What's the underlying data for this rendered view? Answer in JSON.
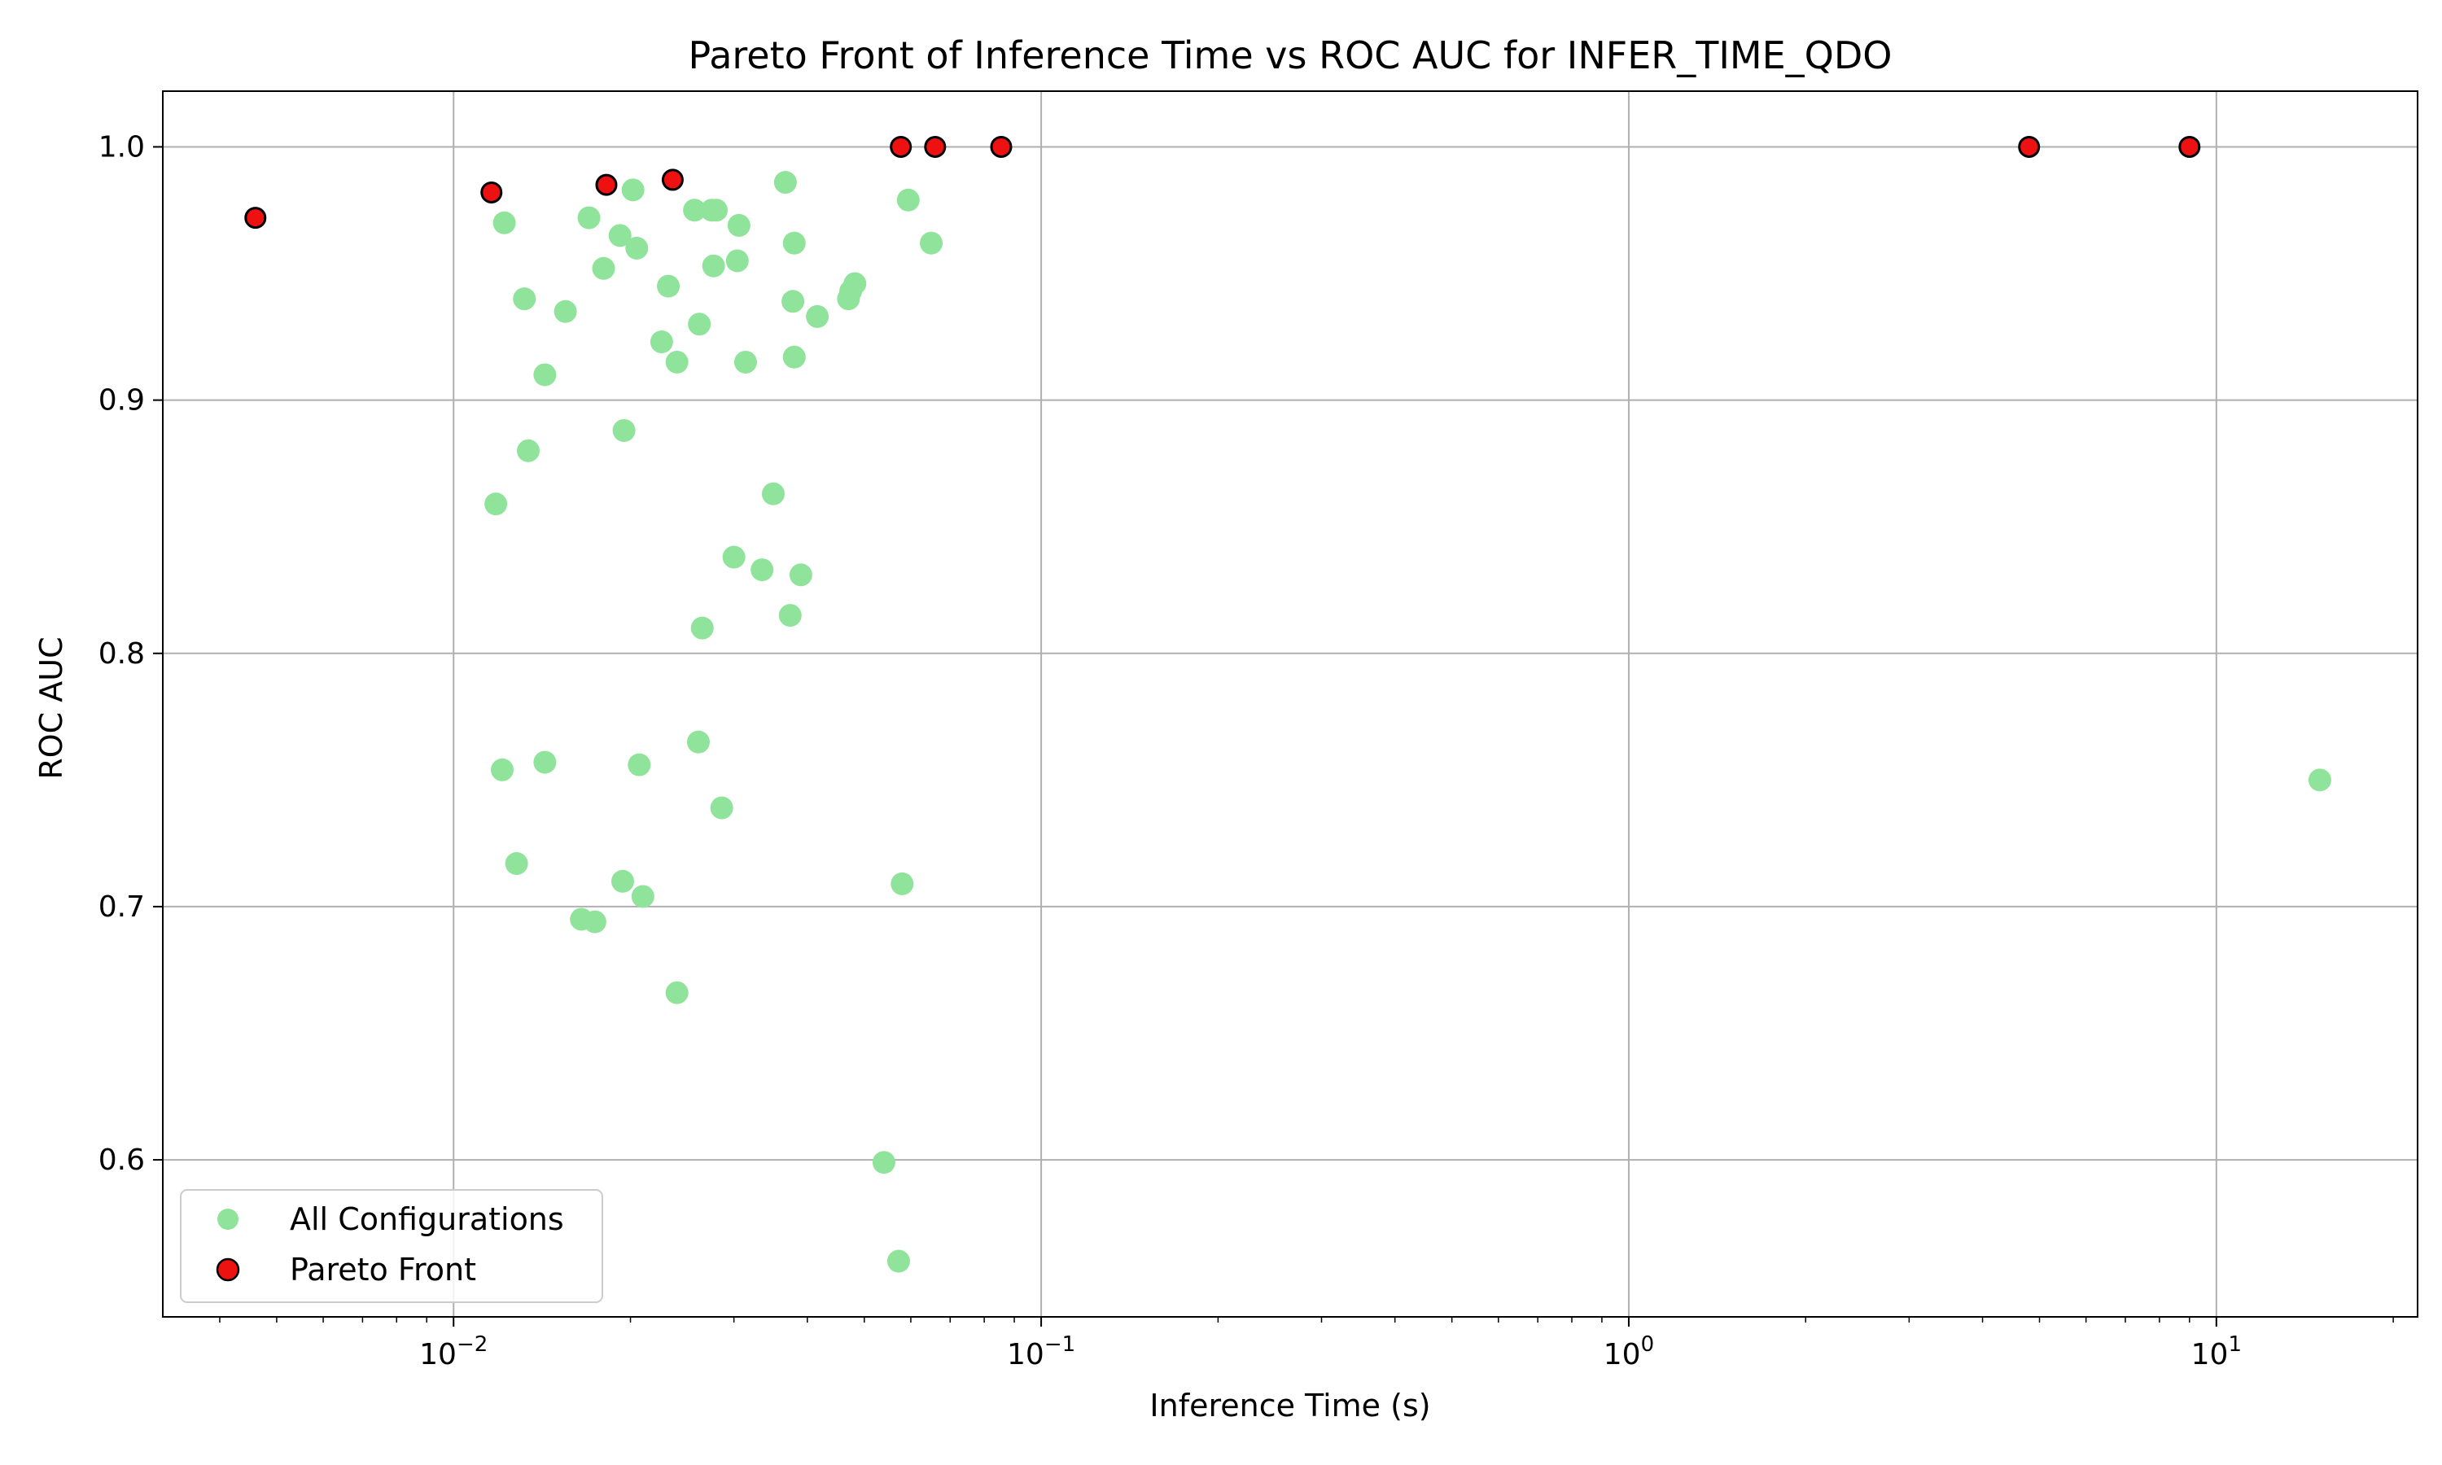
{
  "chart_data": {
    "type": "scatter",
    "title": "Pareto Front of Inference Time vs ROC AUC for INFER_TIME_QDO",
    "xlabel": "Inference Time (s)",
    "ylabel": "ROC AUC",
    "xscale": "log",
    "xlim": [
      0.0032,
      22
    ],
    "ylim": [
      0.538,
      1.022
    ],
    "grid": true,
    "legend_position": "lower-left",
    "x_ticks": [
      {
        "value": 0.01,
        "base": "10",
        "exp": "−2"
      },
      {
        "value": 0.1,
        "base": "10",
        "exp": "−1"
      },
      {
        "value": 1,
        "base": "10",
        "exp": "0"
      },
      {
        "value": 10,
        "base": "10",
        "exp": "1"
      }
    ],
    "y_ticks": [
      {
        "value": 0.6,
        "label": "0.6"
      },
      {
        "value": 0.7,
        "label": "0.7"
      },
      {
        "value": 0.8,
        "label": "0.8"
      },
      {
        "value": 0.9,
        "label": "0.9"
      },
      {
        "value": 1.0,
        "label": "1.0"
      }
    ],
    "series": [
      {
        "name": "All Configurations",
        "color": "#90e39a",
        "points": [
          [
            0.0122,
            0.97
          ],
          [
            0.017,
            0.972
          ],
          [
            0.0202,
            0.983
          ],
          [
            0.0192,
            0.965
          ],
          [
            0.0205,
            0.96
          ],
          [
            0.018,
            0.952
          ],
          [
            0.0132,
            0.94
          ],
          [
            0.0155,
            0.935
          ],
          [
            0.0143,
            0.91
          ],
          [
            0.0195,
            0.888
          ],
          [
            0.0134,
            0.88
          ],
          [
            0.0118,
            0.859
          ],
          [
            0.0232,
            0.945
          ],
          [
            0.0226,
            0.923
          ],
          [
            0.024,
            0.915
          ],
          [
            0.0257,
            0.975
          ],
          [
            0.0275,
            0.975
          ],
          [
            0.028,
            0.975
          ],
          [
            0.0306,
            0.969
          ],
          [
            0.0304,
            0.955
          ],
          [
            0.0277,
            0.953
          ],
          [
            0.0262,
            0.93
          ],
          [
            0.0314,
            0.915
          ],
          [
            0.0367,
            0.986
          ],
          [
            0.038,
            0.962
          ],
          [
            0.0378,
            0.939
          ],
          [
            0.0416,
            0.933
          ],
          [
            0.038,
            0.917
          ],
          [
            0.047,
            0.94
          ],
          [
            0.0474,
            0.943
          ],
          [
            0.0482,
            0.946
          ],
          [
            0.0594,
            0.979
          ],
          [
            0.065,
            0.962
          ],
          [
            0.035,
            0.863
          ],
          [
            0.03,
            0.838
          ],
          [
            0.0335,
            0.833
          ],
          [
            0.039,
            0.831
          ],
          [
            0.0374,
            0.815
          ],
          [
            0.0265,
            0.81
          ],
          [
            0.0261,
            0.765
          ],
          [
            0.0121,
            0.754
          ],
          [
            0.0143,
            0.757
          ],
          [
            0.0207,
            0.756
          ],
          [
            0.0286,
            0.739
          ],
          [
            0.0128,
            0.717
          ],
          [
            0.0194,
            0.71
          ],
          [
            0.021,
            0.704
          ],
          [
            0.058,
            0.709
          ],
          [
            0.0165,
            0.695
          ],
          [
            0.0174,
            0.694
          ],
          [
            0.024,
            0.666
          ],
          [
            0.054,
            0.599
          ],
          [
            0.0572,
            0.56
          ],
          [
            15.0,
            0.75
          ]
        ]
      },
      {
        "name": "Pareto Front",
        "color": "#ee1111",
        "points": [
          [
            0.0046,
            0.972
          ],
          [
            0.0116,
            0.982
          ],
          [
            0.0182,
            0.985
          ],
          [
            0.0236,
            0.987
          ],
          [
            0.0577,
            1.0
          ],
          [
            0.066,
            1.0
          ],
          [
            0.0855,
            1.0
          ],
          [
            4.8,
            1.0
          ],
          [
            9.0,
            1.0
          ]
        ]
      }
    ]
  }
}
